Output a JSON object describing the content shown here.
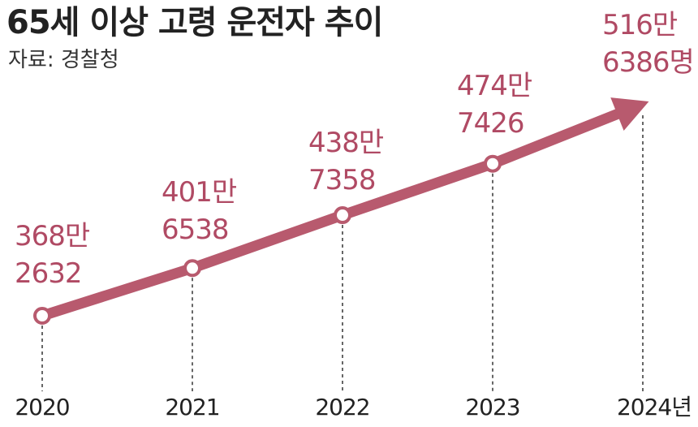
{
  "title": "65세 이상 고령 운전자 추이",
  "source": "자료: 경찰청",
  "colors": {
    "line": "#b85a6e",
    "label": "#b04a64",
    "text": "#222222"
  },
  "chart_data": {
    "type": "line",
    "title": "65세 이상 고령 운전자 추이",
    "x": [
      "2020",
      "2021",
      "2022",
      "2023",
      "2024년"
    ],
    "values": [
      3682632,
      4016538,
      4387358,
      4747426,
      5166386
    ],
    "labels": [
      [
        "368만",
        "2632"
      ],
      [
        "401만",
        "6538"
      ],
      [
        "438만",
        "7358"
      ],
      [
        "474만",
        "7426"
      ],
      [
        "516만",
        "6386명"
      ]
    ],
    "xlabel": "",
    "ylabel": "",
    "grid": false,
    "legend": "none"
  }
}
